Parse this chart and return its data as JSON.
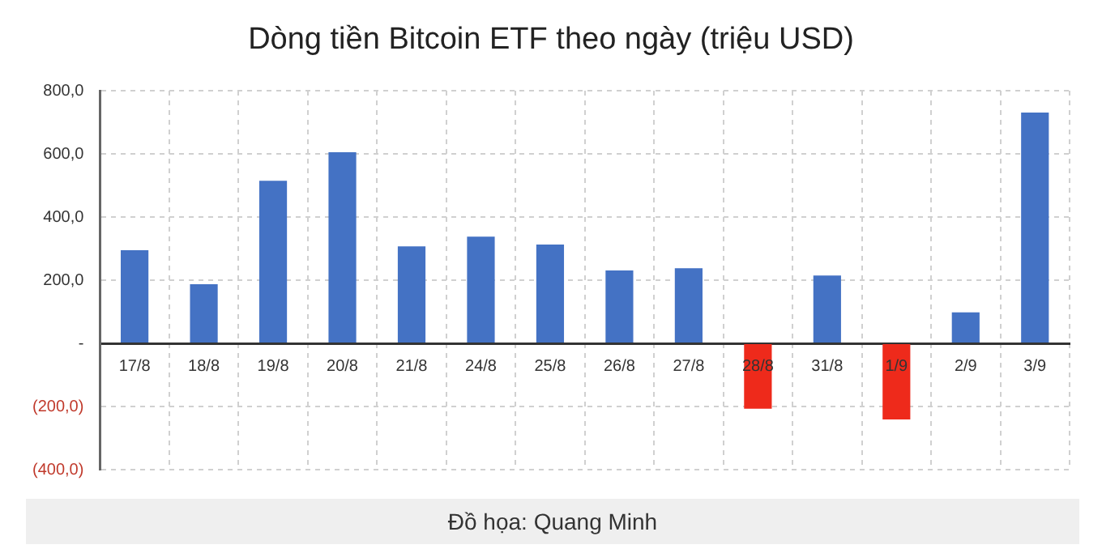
{
  "chart_data": {
    "type": "bar",
    "title": "Dòng tiền Bitcoin ETF theo ngày (triệu USD)",
    "categories": [
      "17/8",
      "18/8",
      "19/8",
      "20/8",
      "21/8",
      "24/8",
      "25/8",
      "26/8",
      "27/8",
      "28/8",
      "31/8",
      "1/9",
      "2/9",
      "3/9"
    ],
    "values": [
      295,
      187,
      515,
      605,
      307,
      338,
      313,
      231,
      238,
      -207,
      215,
      -241,
      98,
      731
    ],
    "colors": [
      "#4472c4",
      "#4472c4",
      "#4472c4",
      "#4472c4",
      "#4472c4",
      "#4472c4",
      "#4472c4",
      "#4472c4",
      "#4472c4",
      "#ee2a1b",
      "#4472c4",
      "#ee2a1b",
      "#4472c4",
      "#4472c4"
    ],
    "ylim": [
      -400,
      800
    ],
    "yticks": [
      {
        "value": -400,
        "label": "(400,0)"
      },
      {
        "value": -200,
        "label": "(200,0)"
      },
      {
        "value": 0,
        "label": "-"
      },
      {
        "value": 200,
        "label": "200,0"
      },
      {
        "value": 400,
        "label": "400,0"
      },
      {
        "value": 600,
        "label": "600,0"
      },
      {
        "value": 800,
        "label": "800,0"
      }
    ],
    "grid": true,
    "annotations": [
      "Đồ họa: Quang Minh"
    ]
  }
}
